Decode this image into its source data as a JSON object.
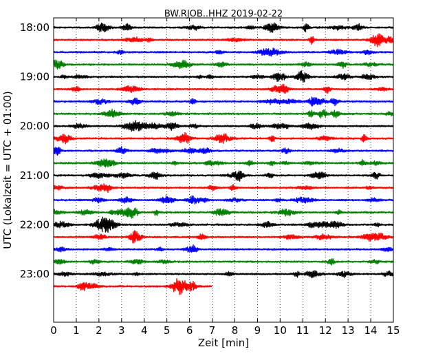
{
  "chart_data": {
    "type": "line",
    "title": "BW.RJOB..HHZ 2019-02-22",
    "xlabel": "Zeit  [min]",
    "ylabel": "UTC (Lokalzeit = UTC + 01:00)",
    "xlim": [
      0,
      15
    ],
    "x_ticks": [
      0,
      1,
      2,
      3,
      4,
      5,
      6,
      7,
      8,
      9,
      10,
      11,
      12,
      13,
      14,
      15
    ],
    "x_tick_labels": [
      "0",
      "1",
      "2",
      "3",
      "4",
      "5",
      "6",
      "7",
      "8",
      "9",
      "10",
      "11",
      "12",
      "13",
      "14",
      "15"
    ],
    "y_tick_labels": [
      "18:00",
      "19:00",
      "20:00",
      "21:00",
      "22:00",
      "23:00"
    ],
    "y_tick_rows": [
      0,
      4,
      8,
      12,
      16,
      20
    ],
    "grid_x": true,
    "grid_style": "dotted",
    "trace_colors": [
      "#000000",
      "#ff0000",
      "#0000ff",
      "#008000"
    ],
    "traces": [
      {
        "start": "18:00",
        "color": "#000000",
        "end_min": 15
      },
      {
        "start": "18:15",
        "color": "#ff0000",
        "end_min": 15
      },
      {
        "start": "18:30",
        "color": "#0000ff",
        "end_min": 15
      },
      {
        "start": "18:45",
        "color": "#008000",
        "end_min": 15
      },
      {
        "start": "19:00",
        "color": "#000000",
        "end_min": 15
      },
      {
        "start": "19:15",
        "color": "#ff0000",
        "end_min": 15
      },
      {
        "start": "19:30",
        "color": "#0000ff",
        "end_min": 15
      },
      {
        "start": "19:45",
        "color": "#008000",
        "end_min": 15
      },
      {
        "start": "20:00",
        "color": "#000000",
        "end_min": 15
      },
      {
        "start": "20:15",
        "color": "#ff0000",
        "end_min": 15
      },
      {
        "start": "20:30",
        "color": "#0000ff",
        "end_min": 15
      },
      {
        "start": "20:45",
        "color": "#008000",
        "end_min": 15
      },
      {
        "start": "21:00",
        "color": "#000000",
        "end_min": 15
      },
      {
        "start": "21:15",
        "color": "#ff0000",
        "end_min": 15
      },
      {
        "start": "21:30",
        "color": "#0000ff",
        "end_min": 15
      },
      {
        "start": "21:45",
        "color": "#008000",
        "end_min": 15
      },
      {
        "start": "22:00",
        "color": "#000000",
        "end_min": 15
      },
      {
        "start": "22:15",
        "color": "#ff0000",
        "end_min": 15
      },
      {
        "start": "22:30",
        "color": "#0000ff",
        "end_min": 15
      },
      {
        "start": "22:45",
        "color": "#008000",
        "end_min": 15
      },
      {
        "start": "23:00",
        "color": "#000000",
        "end_min": 15
      },
      {
        "start": "23:15",
        "color": "#ff0000",
        "end_min": 7
      }
    ]
  }
}
